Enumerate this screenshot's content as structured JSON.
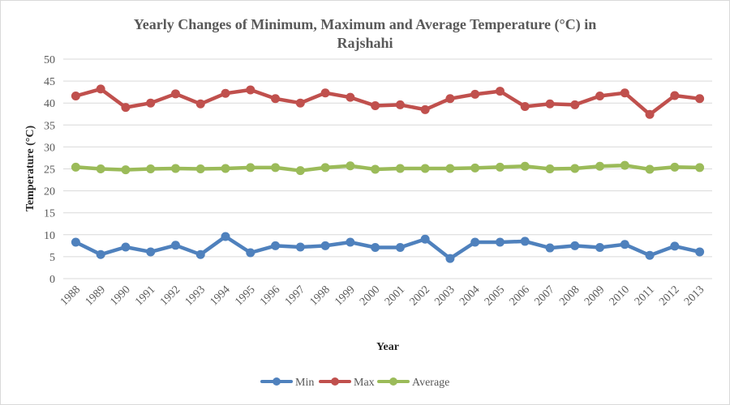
{
  "chart_data": {
    "type": "line",
    "title_line1": "Yearly Changes of Minimum,  Maximum  and Average Temperature (°C) in",
    "title_line2": "Rajshahi",
    "xlabel": "Year",
    "ylabel": "Temperature (°C)",
    "ylim": [
      0,
      50
    ],
    "yticks": [
      0,
      5,
      10,
      15,
      20,
      25,
      30,
      35,
      40,
      45,
      50
    ],
    "grid": true,
    "legend_position": "bottom",
    "categories": [
      "1988",
      "1989",
      "1990",
      "1991",
      "1992",
      "1993",
      "1994",
      "1995",
      "1996",
      "1997",
      "1998",
      "1999",
      "2000",
      "2001",
      "2002",
      "2003",
      "2004",
      "2005",
      "2006",
      "2007",
      "2008",
      "2009",
      "2010",
      "2011",
      "2012",
      "2013"
    ],
    "series": [
      {
        "name": "Min",
        "color": "#4F81BD",
        "values": [
          8.3,
          5.5,
          7.2,
          6.1,
          7.6,
          5.5,
          9.6,
          5.9,
          7.5,
          7.2,
          7.5,
          8.3,
          7.1,
          7.1,
          9.0,
          4.6,
          8.3,
          8.3,
          8.5,
          7.0,
          7.5,
          7.1,
          7.8,
          5.3,
          7.4,
          6.1
        ]
      },
      {
        "name": "Max",
        "color": "#C0504D",
        "values": [
          41.6,
          43.2,
          39.0,
          40.0,
          42.1,
          39.8,
          42.2,
          43.0,
          41.0,
          40.0,
          42.3,
          41.3,
          39.4,
          39.6,
          38.5,
          41.0,
          42.0,
          42.7,
          39.2,
          39.8,
          39.6,
          41.6,
          42.3,
          37.4,
          41.7,
          41.0
        ]
      },
      {
        "name": "Average",
        "color": "#9BBB59",
        "values": [
          25.4,
          25.0,
          24.8,
          25.0,
          25.1,
          25.0,
          25.1,
          25.3,
          25.3,
          24.6,
          25.3,
          25.7,
          24.9,
          25.1,
          25.1,
          25.1,
          25.2,
          25.4,
          25.6,
          25.0,
          25.1,
          25.6,
          25.8,
          24.9,
          25.4,
          25.3
        ]
      }
    ]
  }
}
